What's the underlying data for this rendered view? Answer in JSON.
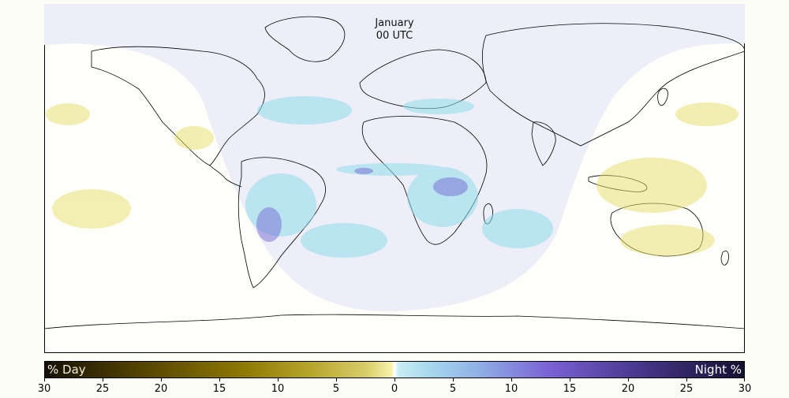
{
  "map": {
    "title_month": "January",
    "title_time": "00 UTC",
    "colors": {
      "night_region": "#eeeef8",
      "day_region": "#fefefa",
      "day_precip": "#e8e06a",
      "night_precip": "#8fdcea",
      "night_precip_strong": "#6a5acd",
      "coastline": "#000000"
    },
    "regions": {
      "night_side": "Americas, Atlantic, Europe, Africa",
      "day_side": "Pacific, Asia, Australia"
    }
  },
  "colorbar": {
    "day_label": "% Day",
    "night_label": "Night %",
    "ticks": [
      "30",
      "25",
      "20",
      "15",
      "10",
      "5",
      "0",
      "5",
      "10",
      "15",
      "20",
      "25",
      "30"
    ],
    "tick_values": [
      -30,
      -25,
      -20,
      -15,
      -10,
      -5,
      0,
      5,
      10,
      15,
      20,
      25,
      30
    ],
    "range": [
      -30,
      30
    ],
    "colors": {
      "day_max": "#151105",
      "day_mid": "#8c7700",
      "zero": "#ffffff",
      "night_mid": "#7a62d4",
      "night_max": "#141030"
    }
  }
}
